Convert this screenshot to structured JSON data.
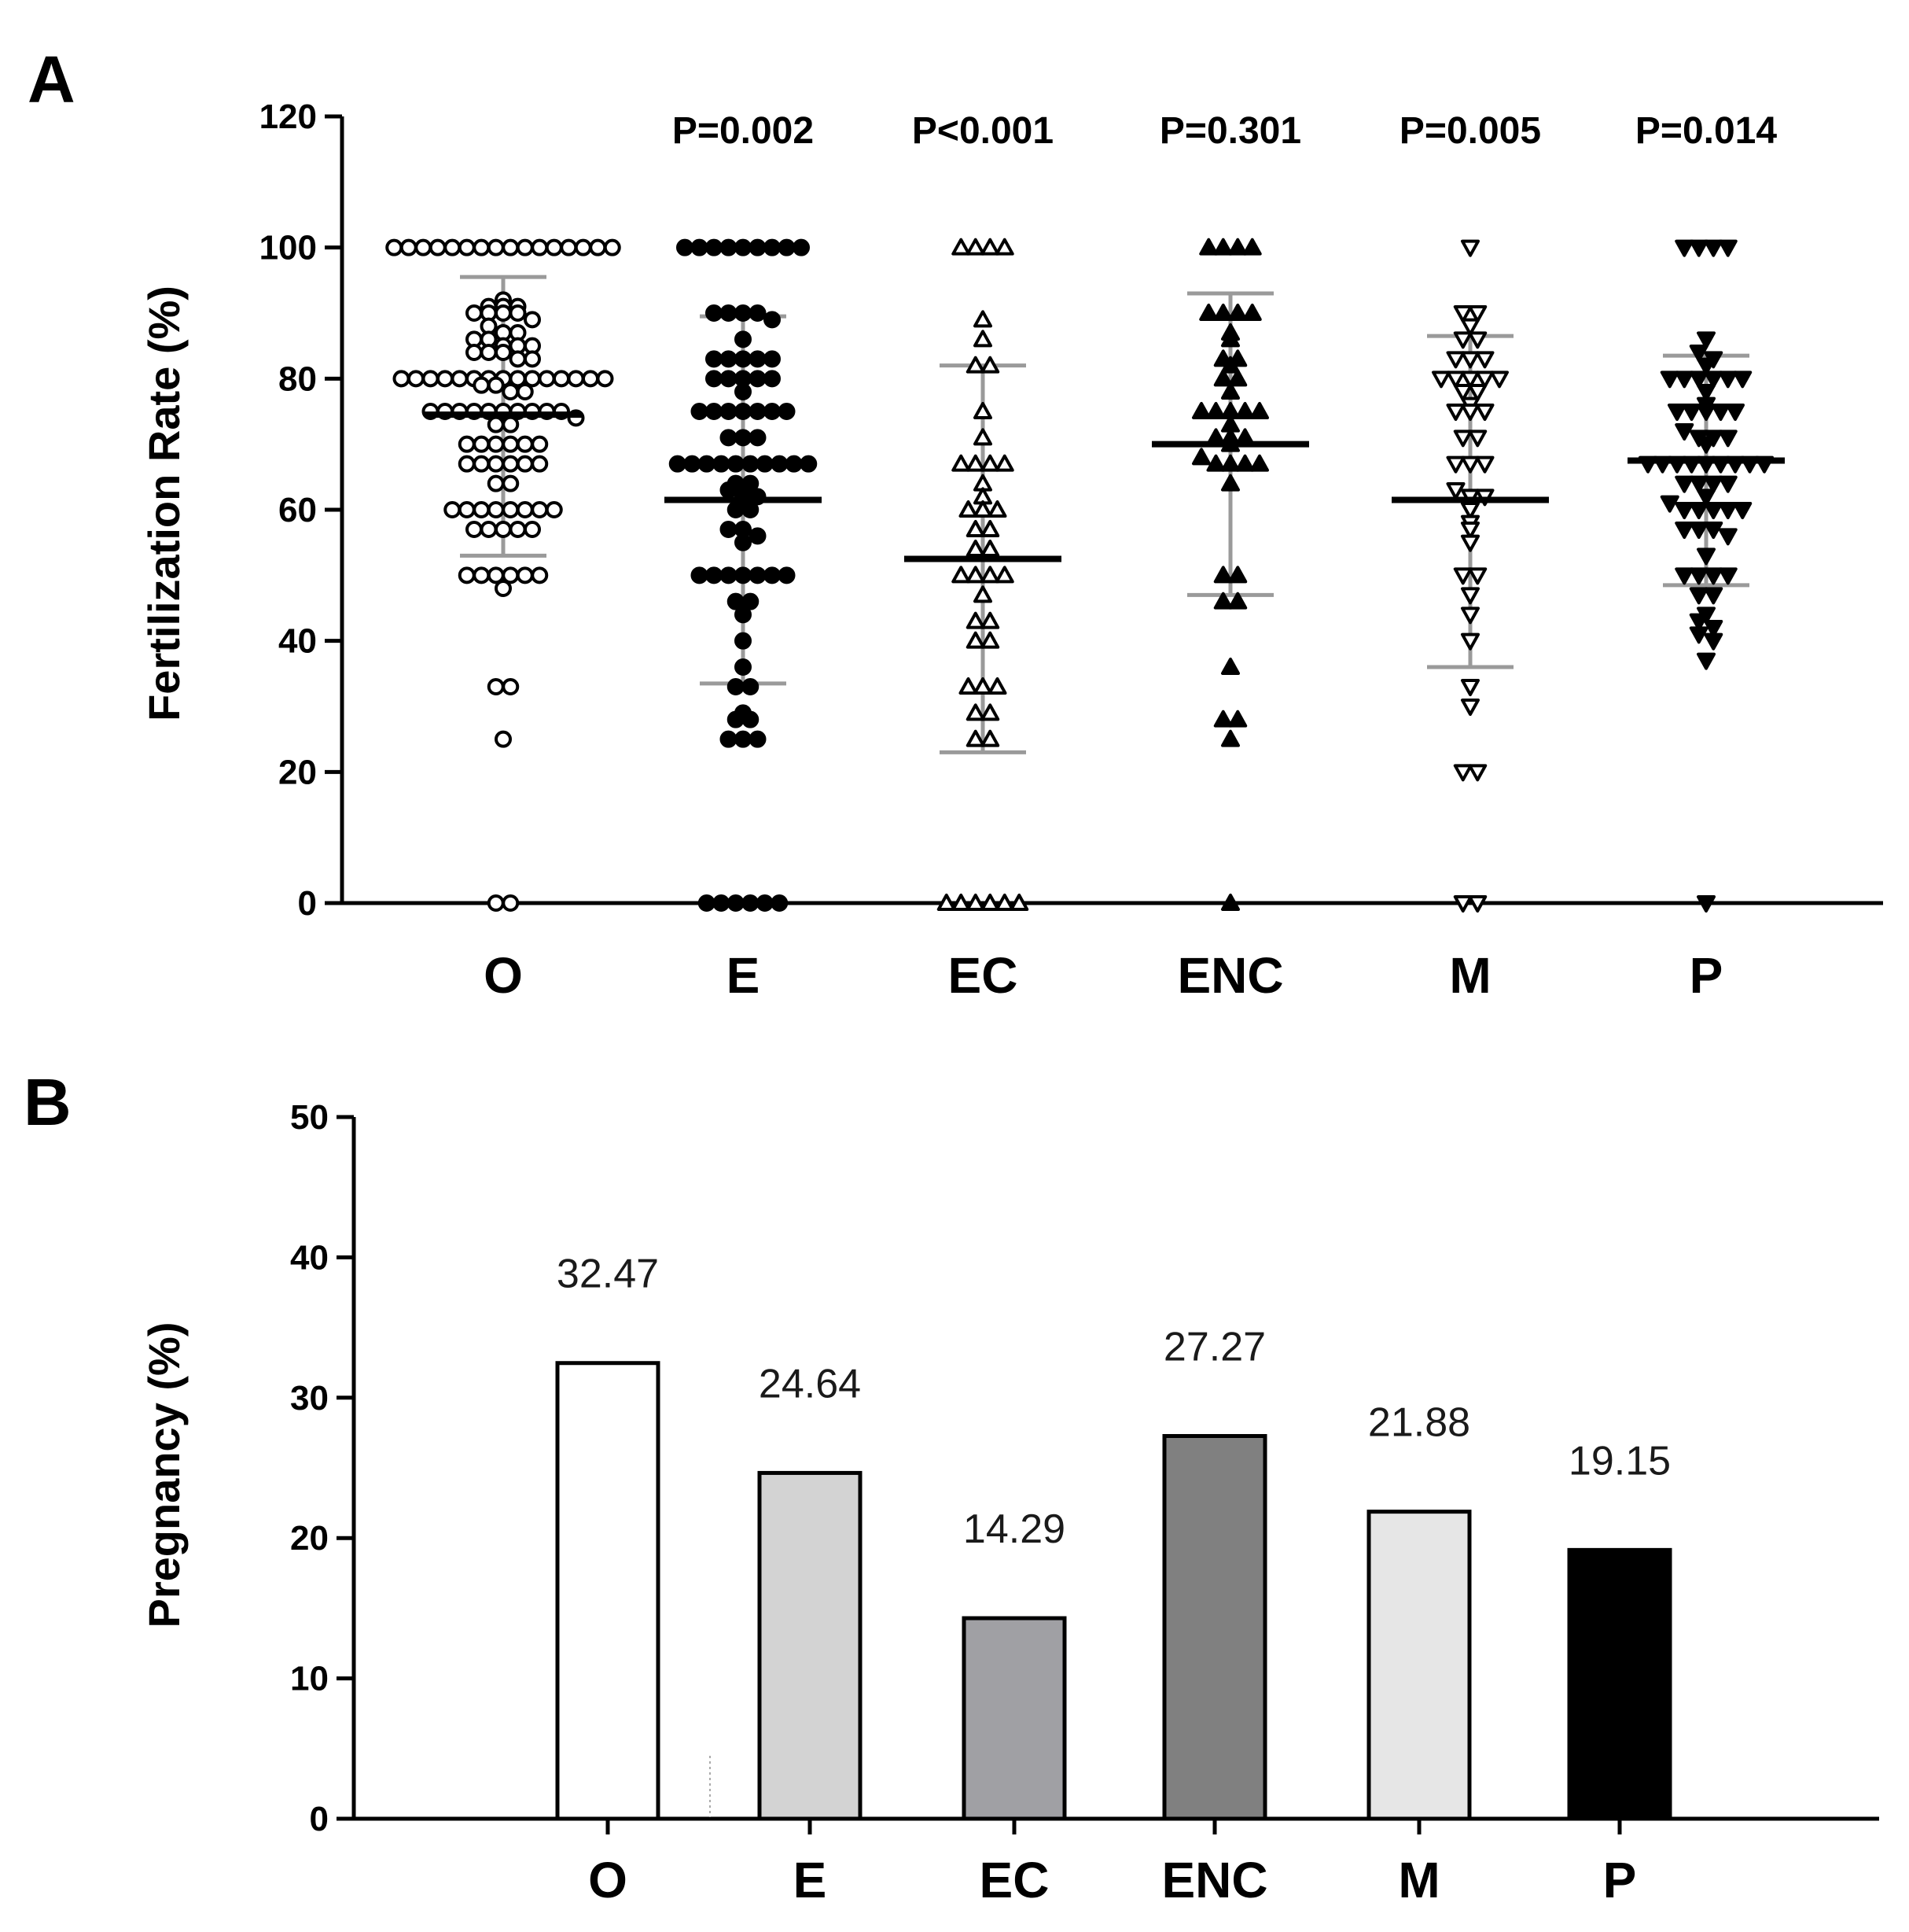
{
  "chart_data": [
    {
      "panel": "A",
      "type": "scatter",
      "ylabel": "Fertilization Rate  (%)",
      "ylim": [
        0,
        120
      ],
      "yticks": [
        0,
        20,
        40,
        60,
        80,
        100,
        120
      ],
      "categories": [
        "O",
        "E",
        "EC",
        "ENC",
        "M",
        "P"
      ],
      "p_values": [
        "",
        "P=0.002",
        "P<0.001",
        "P=0.301",
        "P=0.005",
        "P=0.014"
      ],
      "marker_colors": {
        "line": "#000000",
        "error": "#9a9a9a"
      },
      "groups": [
        {
          "name": "O",
          "marker": "open-circle",
          "mean": 74.5,
          "sd_low": 53,
          "sd_high": 95.5,
          "values": [
            100,
            100,
            100,
            100,
            100,
            100,
            100,
            100,
            100,
            100,
            100,
            100,
            100,
            100,
            100,
            100,
            92,
            91,
            91,
            91,
            90,
            90,
            90,
            90,
            89,
            88,
            87,
            87,
            86,
            86,
            85,
            85,
            85,
            84,
            84,
            84,
            83,
            83,
            80,
            80,
            80,
            80,
            80,
            80,
            80,
            80,
            80,
            80,
            80,
            80,
            80,
            80,
            80,
            79,
            79,
            78,
            78,
            75,
            75,
            75,
            75,
            75,
            75,
            75,
            75,
            75,
            75,
            74,
            73,
            73,
            70,
            70,
            70,
            70,
            70,
            70,
            67,
            67,
            67,
            67,
            67,
            67,
            64,
            64,
            60,
            60,
            60,
            60,
            60,
            60,
            60,
            60,
            57,
            57,
            57,
            57,
            57,
            50,
            50,
            50,
            50,
            50,
            50,
            48,
            33,
            33,
            25,
            0,
            0
          ]
        },
        {
          "name": "E",
          "marker": "filled-circle",
          "mean": 61.5,
          "sd_low": 33.5,
          "sd_high": 89.5,
          "values": [
            100,
            100,
            100,
            100,
            100,
            100,
            100,
            100,
            100,
            90,
            90,
            90,
            90,
            89,
            86,
            83,
            83,
            83,
            83,
            83,
            80,
            80,
            80,
            80,
            80,
            78,
            75,
            75,
            75,
            75,
            75,
            75,
            75,
            71,
            71,
            71,
            67,
            67,
            67,
            67,
            67,
            67,
            67,
            67,
            67,
            67,
            64,
            64,
            63,
            62,
            62,
            60,
            60,
            57,
            57,
            56,
            55,
            50,
            50,
            50,
            50,
            50,
            50,
            50,
            46,
            46,
            44,
            40,
            36,
            33,
            33,
            29,
            28,
            28,
            25,
            25,
            25,
            0,
            0,
            0,
            0,
            0,
            0
          ]
        },
        {
          "name": "EC",
          "marker": "open-triangle-up",
          "mean": 52.5,
          "sd_low": 23,
          "sd_high": 82,
          "values": [
            100,
            100,
            100,
            100,
            89,
            86,
            82,
            82,
            75,
            71,
            67,
            67,
            67,
            67,
            64,
            62,
            60,
            60,
            60,
            57,
            57,
            54,
            54,
            50,
            50,
            50,
            50,
            47,
            43,
            43,
            40,
            40,
            33,
            33,
            33,
            29,
            29,
            25,
            25,
            0,
            0,
            0,
            0,
            0,
            0
          ]
        },
        {
          "name": "ENC",
          "marker": "filled-triangle-up",
          "mean": 70,
          "sd_low": 47,
          "sd_high": 93,
          "values": [
            100,
            100,
            100,
            100,
            90,
            90,
            90,
            90,
            87,
            86,
            83,
            83,
            82,
            80,
            80,
            78,
            75,
            75,
            75,
            75,
            75,
            73,
            71,
            71,
            71,
            70,
            68,
            67,
            67,
            67,
            67,
            64,
            50,
            50,
            46,
            46,
            36,
            28,
            28,
            25,
            0
          ]
        },
        {
          "name": "M",
          "marker": "open-triangle-down",
          "mean": 61.5,
          "sd_low": 36,
          "sd_high": 86.5,
          "values": [
            100,
            90,
            90,
            88,
            86,
            86,
            83,
            83,
            83,
            80,
            80,
            80,
            80,
            80,
            78,
            78,
            76,
            75,
            75,
            75,
            71,
            71,
            67,
            67,
            67,
            63,
            62,
            62,
            60,
            58,
            57,
            55,
            50,
            50,
            47,
            44,
            40,
            33,
            30,
            20,
            20,
            0,
            0
          ]
        },
        {
          "name": "P",
          "marker": "filled-triangle-down",
          "mean": 67.5,
          "sd_low": 48.5,
          "sd_high": 83.5,
          "values": [
            100,
            100,
            100,
            100,
            86,
            84,
            83,
            82,
            80,
            80,
            80,
            80,
            80,
            80,
            78,
            76,
            75,
            75,
            75,
            75,
            75,
            72,
            71,
            71,
            71,
            70,
            67,
            67,
            67,
            67,
            67,
            67,
            67,
            67,
            67,
            64,
            64,
            64,
            64,
            62,
            61,
            60,
            60,
            60,
            60,
            60,
            57,
            57,
            57,
            56,
            53,
            50,
            50,
            50,
            50,
            47,
            47,
            44,
            43,
            42,
            41,
            40,
            37,
            0
          ]
        }
      ]
    },
    {
      "panel": "B",
      "type": "bar",
      "ylabel": "Pregnancy (%)",
      "ylim": [
        0,
        50
      ],
      "yticks": [
        0,
        10,
        20,
        30,
        40,
        50
      ],
      "categories": [
        "O",
        "E",
        "EC",
        "ENC",
        "M",
        "P"
      ],
      "values": [
        32.47,
        24.64,
        14.29,
        27.27,
        21.88,
        19.15
      ],
      "value_labels": [
        "32.47",
        "24.64",
        "14.29",
        "27.27",
        "21.88",
        "19.15"
      ],
      "bar_colors": [
        "#ffffff",
        "#d3d3d3",
        "#a0a0a4",
        "#808080",
        "#e6e6e6",
        "#000000"
      ]
    }
  ]
}
